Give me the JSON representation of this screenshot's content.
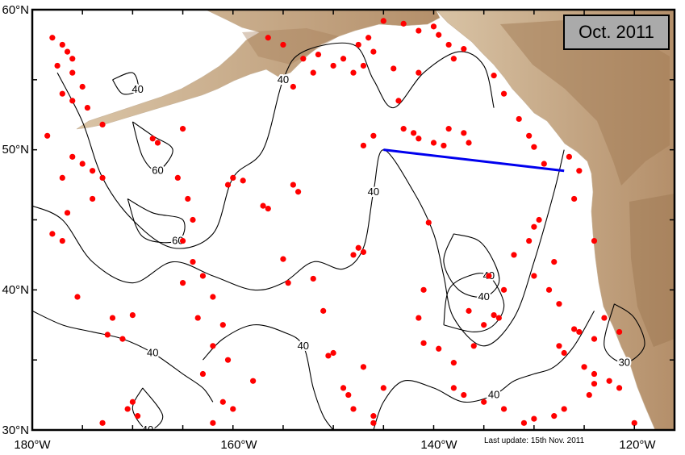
{
  "title": "Oct. 2011",
  "update_note": "Last update: 15th Nov. 2011",
  "colors": {
    "land": "#d4b896",
    "land_dark": "#b08a64",
    "ocean": "#ffffff",
    "float_marker": "#ff0000",
    "section_line": "#0000ee",
    "contour": "#000000",
    "date_box": "#aaaaaa"
  },
  "axes": {
    "lon_ticks": [
      "180°W",
      "160°W",
      "140°W",
      "120°W"
    ],
    "lat_ticks": [
      "30°N",
      "40°N",
      "50°N",
      "60°N"
    ],
    "lon_range": [
      -180,
      -116
    ],
    "lat_range": [
      30,
      60
    ]
  },
  "section_line": {
    "start": [
      -145,
      50
    ],
    "end": [
      -127,
      48.5
    ]
  },
  "contours": [
    {
      "value": "40",
      "points": [
        [
          -177.5,
          55.5
        ],
        [
          -175,
          52
        ],
        [
          -173,
          48
        ],
        [
          -170,
          45
        ],
        [
          -166,
          43
        ],
        [
          -162,
          44
        ],
        [
          -160,
          48
        ],
        [
          -157,
          50
        ],
        [
          -155,
          55
        ],
        [
          -153,
          57
        ],
        [
          -148,
          57.5
        ],
        [
          -146,
          55
        ],
        [
          -144,
          53
        ],
        [
          -141,
          55.5
        ],
        [
          -137.5,
          57
        ],
        [
          -135,
          56
        ],
        [
          -134,
          53
        ]
      ]
    },
    {
      "value": "40",
      "points": [
        [
          -180,
          46
        ],
        [
          -177,
          45
        ],
        [
          -174,
          42
        ],
        [
          -170,
          40.5
        ],
        [
          -166,
          42
        ],
        [
          -162,
          41
        ],
        [
          -158,
          40
        ],
        [
          -155,
          40.5
        ],
        [
          -152,
          42
        ],
        [
          -149,
          41.5
        ],
        [
          -147,
          43
        ],
        [
          -146,
          47
        ],
        [
          -145,
          50
        ],
        [
          -142,
          47
        ],
        [
          -140,
          44
        ],
        [
          -139,
          41
        ],
        [
          -138,
          38
        ],
        [
          -135,
          36
        ],
        [
          -132,
          38
        ],
        [
          -130,
          42
        ],
        [
          -128,
          47
        ],
        [
          -127,
          50
        ]
      ]
    },
    {
      "value": "40",
      "points": [
        [
          -180,
          38.5
        ],
        [
          -177,
          37.5
        ],
        [
          -174,
          37
        ],
        [
          -171,
          36.5
        ],
        [
          -168,
          35.5
        ],
        [
          -165,
          34
        ],
        [
          -163,
          33
        ],
        [
          -162,
          32
        ]
      ]
    },
    {
      "value": "40",
      "points": [
        [
          -163,
          35
        ],
        [
          -161,
          36.5
        ],
        [
          -158,
          37.5
        ],
        [
          -155,
          37
        ],
        [
          -153,
          36
        ],
        [
          -152,
          33
        ],
        [
          -151,
          31
        ],
        [
          -150,
          30
        ]
      ]
    },
    {
      "value": "40",
      "points": [
        [
          -146,
          30
        ],
        [
          -145,
          32
        ],
        [
          -143,
          33.5
        ],
        [
          -140,
          33
        ],
        [
          -137,
          32
        ],
        [
          -134,
          32.5
        ],
        [
          -132,
          33.5
        ],
        [
          -130,
          34
        ],
        [
          -128,
          34.5
        ],
        [
          -126,
          36
        ],
        [
          -124,
          38.5
        ]
      ]
    },
    {
      "value": "40",
      "points": [
        [
          -139,
          37.5
        ],
        [
          -136,
          37
        ],
        [
          -134,
          37.5
        ],
        [
          -133,
          39
        ],
        [
          -134.5,
          41
        ],
        [
          -136.5,
          41
        ],
        [
          -138.5,
          40
        ],
        [
          -139,
          37.5
        ]
      ]
    },
    {
      "value": "40",
      "points": [
        [
          -138,
          44
        ],
        [
          -135.5,
          43.5
        ],
        [
          -134,
          42
        ],
        [
          -133.5,
          40.5
        ],
        [
          -135,
          39.5
        ],
        [
          -137.5,
          40
        ],
        [
          -139,
          42
        ],
        [
          -138,
          44
        ]
      ]
    },
    {
      "value": "60",
      "points": [
        [
          -170,
          52
        ],
        [
          -168,
          51
        ],
        [
          -166,
          50
        ],
        [
          -167.5,
          48.5
        ],
        [
          -169,
          49.5
        ],
        [
          -170,
          52
        ]
      ]
    },
    {
      "value": "60",
      "points": [
        [
          -170.5,
          46.5
        ],
        [
          -168,
          45.5
        ],
        [
          -165,
          45
        ],
        [
          -165.5,
          43.5
        ],
        [
          -169,
          43.8
        ],
        [
          -170.5,
          46.5
        ]
      ]
    },
    {
      "value": "40",
      "points": [
        [
          -172,
          55
        ],
        [
          -171,
          54
        ],
        [
          -169.5,
          54.3
        ],
        [
          -170,
          55.5
        ],
        [
          -172,
          55
        ]
      ]
    },
    {
      "value": "30",
      "points": [
        [
          -122,
          39
        ],
        [
          -120,
          38
        ],
        [
          -119,
          36
        ],
        [
          -121,
          34.8
        ],
        [
          -123,
          36
        ],
        [
          -122,
          39
        ]
      ]
    },
    {
      "value": "40",
      "points": [
        [
          -169,
          33
        ],
        [
          -167,
          31
        ],
        [
          -168.5,
          30
        ],
        [
          -170,
          31.5
        ],
        [
          -169,
          33
        ]
      ]
    }
  ],
  "floats": [
    [
      -178,
      58
    ],
    [
      -177,
      57.5
    ],
    [
      -176.5,
      57
    ],
    [
      -176,
      56.5
    ],
    [
      -177.5,
      56
    ],
    [
      -176,
      55.5
    ],
    [
      -175,
      54.5
    ],
    [
      -177,
      54
    ],
    [
      -176,
      53.5
    ],
    [
      -174.5,
      53
    ],
    [
      -178.5,
      51
    ],
    [
      -173,
      51.8
    ],
    [
      -176,
      49.5
    ],
    [
      -175,
      49
    ],
    [
      -174,
      48.5
    ],
    [
      -173,
      48
    ],
    [
      -177,
      48
    ],
    [
      -174,
      46.5
    ],
    [
      -176.5,
      45.5
    ],
    [
      -178,
      44
    ],
    [
      -177,
      43.5
    ],
    [
      -175.5,
      39.5
    ],
    [
      -172,
      38
    ],
    [
      -170,
      38.2
    ],
    [
      -172.5,
      36.8
    ],
    [
      -171,
      36.5
    ],
    [
      -170,
      32
    ],
    [
      -170.5,
      31.5
    ],
    [
      -169.5,
      31
    ],
    [
      -173,
      30.5
    ],
    [
      -168,
      50.8
    ],
    [
      -167.5,
      50.5
    ],
    [
      -165,
      51.5
    ],
    [
      -165.5,
      48
    ],
    [
      -164.5,
      46.5
    ],
    [
      -164,
      45
    ],
    [
      -165,
      43.5
    ],
    [
      -164,
      42
    ],
    [
      -163,
      41
    ],
    [
      -165,
      40.5
    ],
    [
      -162,
      39.5
    ],
    [
      -163.5,
      38
    ],
    [
      -161,
      37.5
    ],
    [
      -162,
      36
    ],
    [
      -160.5,
      35
    ],
    [
      -163,
      34
    ],
    [
      -161,
      32
    ],
    [
      -162,
      30.5
    ],
    [
      -160,
      31.5
    ],
    [
      -158,
      33.5
    ],
    [
      -160,
      48
    ],
    [
      -159,
      47.8
    ],
    [
      -160.5,
      47.5
    ],
    [
      -157,
      46
    ],
    [
      -156.5,
      45.8
    ],
    [
      -154,
      47.5
    ],
    [
      -153.5,
      47
    ],
    [
      -155,
      42.2
    ],
    [
      -154.5,
      40.5
    ],
    [
      -152,
      40.8
    ],
    [
      -151,
      38.5
    ],
    [
      -150,
      35.5
    ],
    [
      -150.5,
      35.3
    ],
    [
      -149,
      33
    ],
    [
      -148.5,
      32.5
    ],
    [
      -148,
      31.5
    ],
    [
      -146,
      31
    ],
    [
      -146,
      30.5
    ],
    [
      -145,
      33
    ],
    [
      -147,
      34.5
    ],
    [
      -148,
      42.5
    ],
    [
      -147.5,
      43
    ],
    [
      -147,
      42.7
    ],
    [
      -147,
      50.3
    ],
    [
      -146,
      51
    ],
    [
      -143,
      51.5
    ],
    [
      -142,
      51.2
    ],
    [
      -143.5,
      53.5
    ],
    [
      -141.5,
      55.5
    ],
    [
      -141.5,
      50.8
    ],
    [
      -140,
      50.5
    ],
    [
      -139,
      50.3
    ],
    [
      -138.5,
      51.5
    ],
    [
      -137,
      51.2
    ],
    [
      -136.5,
      50.5
    ],
    [
      -140.5,
      44.8
    ],
    [
      -141,
      40
    ],
    [
      -141.5,
      38
    ],
    [
      -141,
      36.2
    ],
    [
      -139.5,
      35.8
    ],
    [
      -138,
      34.8
    ],
    [
      -136,
      36
    ],
    [
      -135,
      37.5
    ],
    [
      -136.5,
      38.5
    ],
    [
      -134,
      38.2
    ],
    [
      -133.5,
      38
    ],
    [
      -134.5,
      41
    ],
    [
      -133,
      40
    ],
    [
      -132,
      42.5
    ],
    [
      -130.5,
      43.5
    ],
    [
      -130,
      44.5
    ],
    [
      -129.5,
      45
    ],
    [
      -130,
      41
    ],
    [
      -128,
      42
    ],
    [
      -128.5,
      40
    ],
    [
      -127.5,
      39
    ],
    [
      -126,
      37.2
    ],
    [
      -125.5,
      37
    ],
    [
      -124,
      36.5
    ],
    [
      -127.5,
      36
    ],
    [
      -127,
      35.5
    ],
    [
      -125,
      34.5
    ],
    [
      -124,
      34
    ],
    [
      -124,
      33.3
    ],
    [
      -124.5,
      32.5
    ],
    [
      -122.5,
      33.5
    ],
    [
      -121.5,
      33
    ],
    [
      -120,
      30.5
    ],
    [
      -127,
      31.5
    ],
    [
      -128,
      31
    ],
    [
      -130,
      30.8
    ],
    [
      -131,
      30.5
    ],
    [
      -133,
      31.5
    ],
    [
      -135,
      32
    ],
    [
      -137,
      32.5
    ],
    [
      -138,
      33
    ],
    [
      -156.5,
      58
    ],
    [
      -155,
      57.5
    ],
    [
      -153,
      56.5
    ],
    [
      -151.5,
      56.8
    ],
    [
      -152,
      55.5
    ],
    [
      -154,
      54.5
    ],
    [
      -150,
      56
    ],
    [
      -149,
      56.5
    ],
    [
      -148,
      55.5
    ],
    [
      -147.5,
      57.5
    ],
    [
      -146.5,
      58
    ],
    [
      -145,
      59.2
    ],
    [
      -143,
      59
    ],
    [
      -141.5,
      58.5
    ],
    [
      -140,
      58.8
    ],
    [
      -139.5,
      58.2
    ],
    [
      -138.5,
      57.5
    ],
    [
      -137,
      57.2
    ],
    [
      -138,
      56.5
    ],
    [
      -146,
      57
    ],
    [
      -147,
      56
    ],
    [
      -144,
      55.8
    ],
    [
      -134,
      55.3
    ],
    [
      -133,
      54
    ],
    [
      -131.5,
      52.2
    ],
    [
      -130.5,
      51
    ],
    [
      -130,
      50.2
    ],
    [
      -129,
      49
    ],
    [
      -126.5,
      49.5
    ],
    [
      -125.5,
      48.5
    ],
    [
      -126,
      46.5
    ],
    [
      -124,
      43.5
    ],
    [
      -121.5,
      37
    ],
    [
      -123,
      38
    ]
  ]
}
